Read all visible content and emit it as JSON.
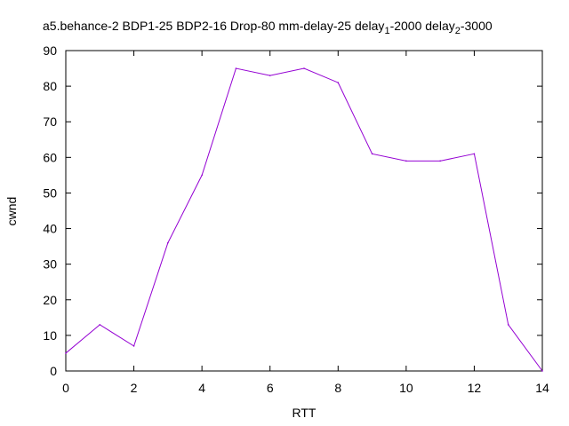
{
  "chart_data": {
    "type": "line",
    "title": {
      "main": "a5.behance-2 BDP1-25 BDP2-16 Drop-80 mm-delay-25 delay",
      "sub1": "1",
      "mid": "-2000 delay",
      "sub2": "2",
      "end": "-3000"
    },
    "xlabel": "RTT",
    "ylabel": "cwnd",
    "xlim": [
      0,
      14
    ],
    "ylim": [
      0,
      90
    ],
    "xticks": [
      "0",
      "2",
      "4",
      "6",
      "8",
      "10",
      "12",
      "14"
    ],
    "yticks": [
      "0",
      "10",
      "20",
      "30",
      "40",
      "50",
      "60",
      "70",
      "80",
      "90"
    ],
    "grid": false,
    "series": [
      {
        "color": "#9400d3",
        "x": [
          0,
          1,
          2,
          3,
          4,
          5,
          6,
          7,
          8,
          9,
          10,
          11,
          12,
          13,
          14
        ],
        "y": [
          5,
          13,
          7,
          36,
          55,
          85,
          83,
          85,
          81,
          61,
          59,
          59,
          61,
          13,
          0
        ]
      }
    ]
  }
}
